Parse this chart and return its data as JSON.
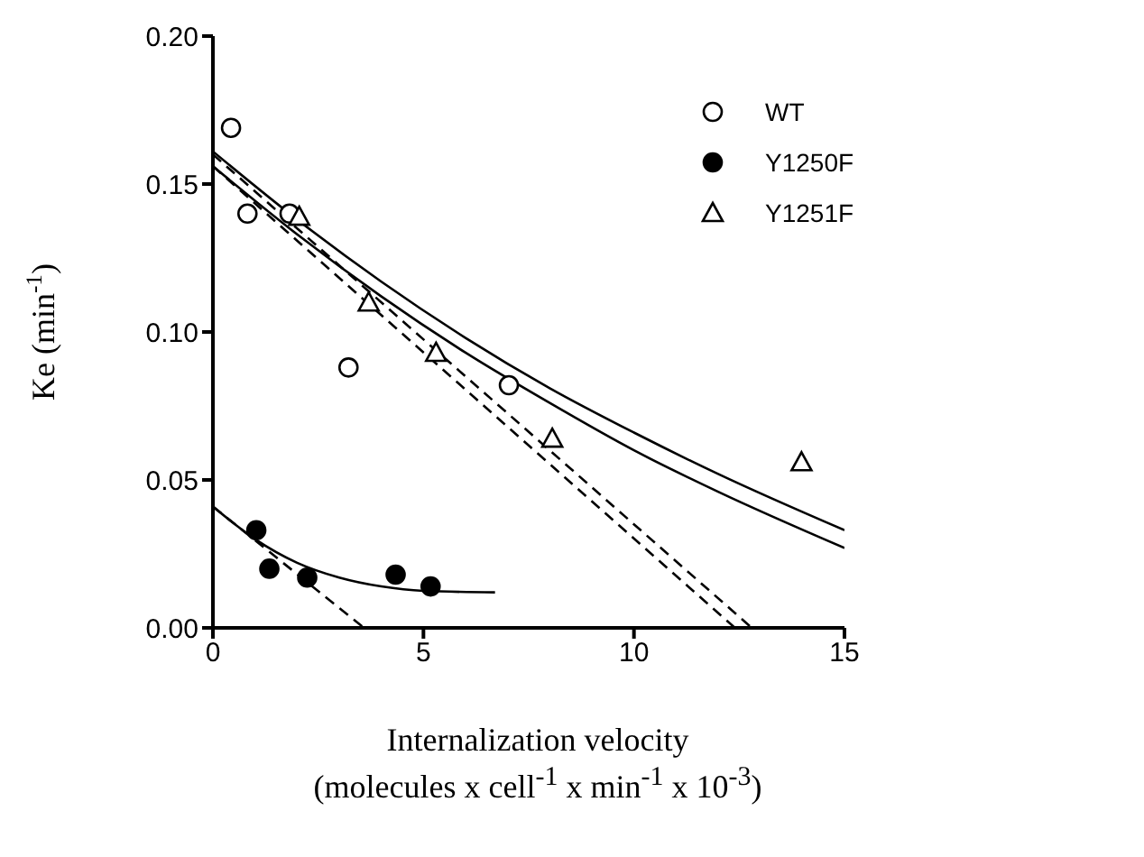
{
  "chart_data": {
    "type": "scatter",
    "xlabel": "Internalization velocity\n(molecules x cell$^{-1}$ x min$^{-1}$ x 10$^{-3}$)",
    "ylabel": "Ke (min$^{-1}$)",
    "xlim": [
      0,
      15
    ],
    "xticks": [
      0,
      5,
      10,
      15
    ],
    "ylim": [
      0,
      0.2
    ],
    "yticks": [
      {
        "value": 0,
        "label": "0.00"
      },
      {
        "value": 0.05,
        "label": "0.05"
      },
      {
        "value": 0.1,
        "label": "0.10"
      },
      {
        "value": 0.15,
        "label": "0.15"
      },
      {
        "value": 0.2,
        "label": "0.20"
      }
    ],
    "grid": false,
    "legend": "right",
    "series": [
      {
        "name": "WT",
        "marker": "circle",
        "color": "#000000",
        "x": [
          0.43,
          0.82,
          1.82,
          3.22,
          7.03
        ],
        "values": [
          0.169,
          0.14,
          0.14,
          0.088,
          0.082
        ]
      },
      {
        "name": "Y1250F",
        "marker": "circle",
        "color": "#000000",
        "x": [
          1.03,
          1.34,
          2.24,
          4.34,
          5.17
        ],
        "values": [
          0.033,
          0.02,
          0.017,
          0.018,
          0.014
        ]
      },
      {
        "name": "Y1251F",
        "marker": "triangle",
        "color": "#000000",
        "x": [
          2.05,
          3.7,
          5.3,
          8.06,
          13.98
        ],
        "values": [
          0.139,
          0.11,
          0.093,
          0.064,
          0.056
        ]
      },
      {
        "type": "line",
        "color": "#000000",
        "line_style": "solid",
        "marker": "none",
        "x": [
          0,
          2,
          4,
          6,
          8,
          10,
          12,
          15
        ],
        "values": [
          0.161,
          0.138,
          0.117,
          0.098,
          0.081,
          0.066,
          0.052,
          0.033
        ]
      },
      {
        "type": "line",
        "color": "#000000",
        "line_style": "solid",
        "marker": "none",
        "x": [
          0,
          2,
          4,
          6,
          8,
          10,
          12,
          15
        ],
        "values": [
          0.156,
          0.133,
          0.112,
          0.093,
          0.076,
          0.06,
          0.046,
          0.027
        ]
      },
      {
        "type": "line",
        "color": "#000000",
        "line_style": "dashed",
        "marker": "none",
        "x": [
          0,
          12.8
        ],
        "values": [
          0.16,
          0
        ]
      },
      {
        "type": "line",
        "color": "#000000",
        "line_style": "dashed",
        "marker": "none",
        "x": [
          0,
          12.4
        ],
        "values": [
          0.156,
          0
        ]
      },
      {
        "type": "line",
        "color": "#000000",
        "line_style": "solid",
        "marker": "none",
        "x": [
          0,
          1,
          2,
          3,
          4,
          5,
          6.7
        ],
        "values": [
          0.041,
          0.03,
          0.022,
          0.017,
          0.014,
          0.0125,
          0.012
        ]
      },
      {
        "type": "line",
        "color": "#000000",
        "line_style": "dashed",
        "marker": "none",
        "x": [
          0,
          3.59
        ],
        "values": [
          0.041,
          0
        ]
      }
    ]
  }
}
